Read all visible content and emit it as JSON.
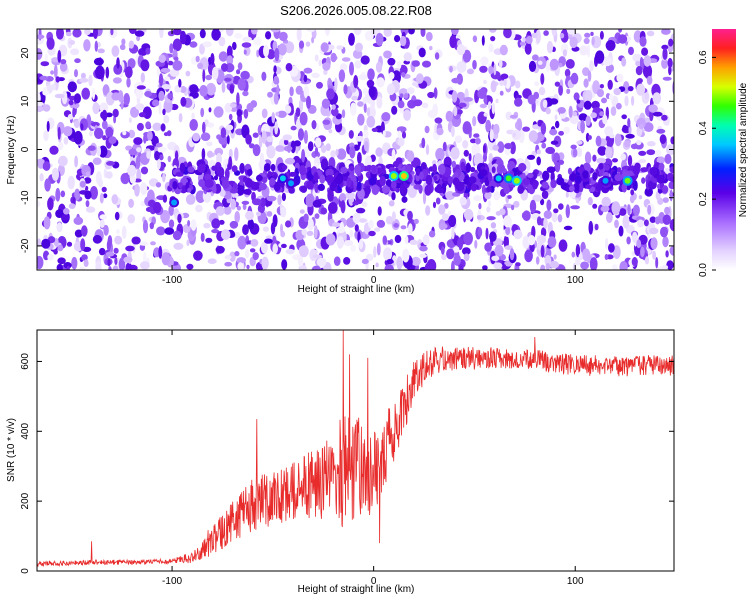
{
  "title": "S206.2026.005.08.22.R08",
  "chart_data": [
    {
      "type": "heatmap",
      "title": "S206.2026.005.08.22.R08",
      "xlabel": "Height of straight line (km)",
      "ylabel": "Frequency (Hz)",
      "xlim": [
        -167,
        149
      ],
      "ylim": [
        -25,
        25
      ],
      "xticks": [
        -100,
        0,
        100
      ],
      "yticks": [
        -20,
        -10,
        0,
        10,
        20
      ],
      "signal_band_center_hz": -6,
      "signal_band_start_km": -100,
      "hotspots": [
        {
          "x": -99,
          "y": -11,
          "amp": 0.28
        },
        {
          "x": -45,
          "y": -6,
          "amp": 0.3
        },
        {
          "x": -41,
          "y": -7,
          "amp": 0.28
        },
        {
          "x": 10,
          "y": -5.5,
          "amp": 0.42
        },
        {
          "x": 15,
          "y": -5.5,
          "amp": 0.5
        },
        {
          "x": 62,
          "y": -6,
          "amp": 0.3
        },
        {
          "x": 67,
          "y": -6,
          "amp": 0.38
        },
        {
          "x": 71,
          "y": -6.5,
          "amp": 0.42
        },
        {
          "x": 115,
          "y": -6.5,
          "amp": 0.28
        },
        {
          "x": 126,
          "y": -6.5,
          "amp": 0.4
        }
      ],
      "colorbar": {
        "label": "Normalized spectral amplitude",
        "range": [
          0.0,
          0.68
        ],
        "ticks": [
          0.0,
          0.2,
          0.4,
          0.6
        ]
      }
    },
    {
      "type": "line",
      "xlabel": "Height of straight line (km)",
      "ylabel": "SNR (10 * v/v)",
      "xlim": [
        -167,
        149
      ],
      "ylim": [
        0,
        690
      ],
      "xticks": [
        -100,
        0,
        100
      ],
      "yticks": [
        0,
        200,
        400,
        600
      ],
      "series": [
        {
          "name": "SNR",
          "color": "#e82b2b",
          "trend": {
            "x": [
              -167,
              -140,
              -120,
              -100,
              -90,
              -80,
              -70,
              -60,
              -50,
              -40,
              -30,
              -20,
              -15,
              -10,
              -5,
              0,
              5,
              10,
              15,
              20,
              25,
              30,
              40,
              60,
              80,
              100,
              120,
              149
            ],
            "y": [
              20,
              25,
              25,
              28,
              40,
              90,
              140,
              190,
              210,
              230,
              250,
              270,
              300,
              300,
              290,
              280,
              340,
              400,
              470,
              540,
              580,
              600,
              610,
              610,
              605,
              590,
              585,
              590
            ]
          },
          "noise": {
            "x": [
              -167,
              -100,
              -90,
              -80,
              -60,
              -40,
              -20,
              -15,
              -10,
              0,
              10,
              20,
              30,
              60,
              149
            ],
            "amp": [
              7,
              7,
              18,
              45,
              75,
              85,
              120,
              180,
              160,
              120,
              90,
              60,
              40,
              30,
              30
            ]
          },
          "spikes": [
            {
              "x": -140,
              "y": 85
            },
            {
              "x": -58,
              "y": 435
            },
            {
              "x": -15,
              "y": 690
            },
            {
              "x": -12,
              "y": 620
            },
            {
              "x": -3,
              "y": 610
            },
            {
              "x": 3,
              "y": 80
            },
            {
              "x": 80,
              "y": 670
            }
          ]
        }
      ]
    }
  ]
}
